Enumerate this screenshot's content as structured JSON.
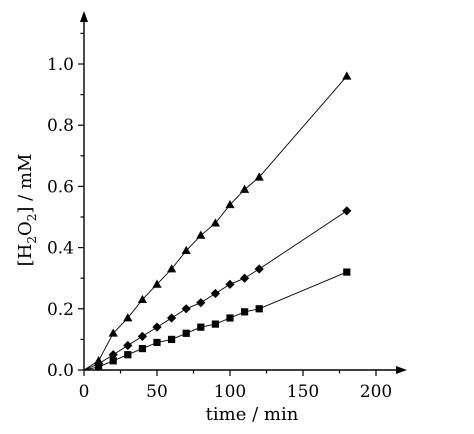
{
  "chart_data": {
    "type": "scatter",
    "title": "",
    "xlabel": "time / min",
    "ylabel_parts": {
      "open": "[H",
      "sub1": "2",
      "mid": "O",
      "sub2": "2",
      "close": "] / mM"
    },
    "xlim": [
      0,
      205
    ],
    "ylim": [
      0,
      1.15
    ],
    "xticks": [
      0,
      50,
      100,
      150,
      200
    ],
    "yticks": [
      0.0,
      0.2,
      0.4,
      0.6,
      0.8,
      1.0
    ],
    "xtick_labels": [
      "0",
      "50",
      "100",
      "150",
      "200"
    ],
    "ytick_labels": [
      "0.0",
      "0.2",
      "0.4",
      "0.6",
      "0.8",
      "1.0"
    ],
    "grid": false,
    "series": [
      {
        "marker": "triangle",
        "x": [
          0,
          10,
          20,
          30,
          40,
          50,
          60,
          70,
          80,
          90,
          100,
          110,
          120,
          180
        ],
        "y": [
          0.0,
          0.03,
          0.12,
          0.17,
          0.23,
          0.28,
          0.33,
          0.39,
          0.44,
          0.48,
          0.54,
          0.59,
          0.63,
          0.96
        ]
      },
      {
        "marker": "diamond",
        "x": [
          0,
          10,
          20,
          30,
          40,
          50,
          60,
          70,
          80,
          90,
          100,
          110,
          120,
          180
        ],
        "y": [
          0.0,
          0.02,
          0.05,
          0.08,
          0.11,
          0.14,
          0.17,
          0.2,
          0.22,
          0.25,
          0.28,
          0.3,
          0.33,
          0.52
        ]
      },
      {
        "marker": "square",
        "x": [
          0,
          10,
          20,
          30,
          40,
          50,
          60,
          70,
          80,
          90,
          100,
          110,
          120,
          180
        ],
        "y": [
          0.0,
          0.01,
          0.03,
          0.05,
          0.07,
          0.09,
          0.1,
          0.12,
          0.14,
          0.15,
          0.17,
          0.19,
          0.2,
          0.32
        ]
      }
    ]
  }
}
